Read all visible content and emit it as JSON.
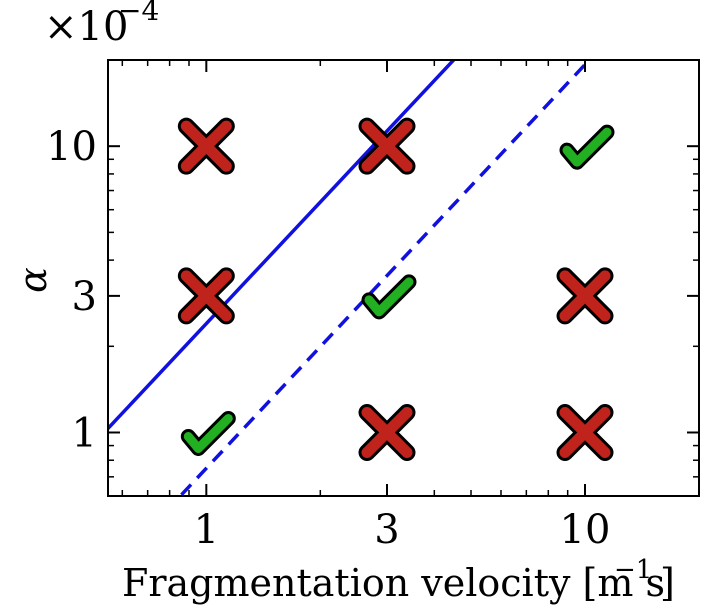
{
  "chart_data": {
    "type": "scatter",
    "title": "",
    "multiplier": {
      "base": "×10",
      "exponent": "−4"
    },
    "xlabel": {
      "text": "Fragmentation velocity [m s",
      "exponent": "−1",
      "close": "]"
    },
    "ylabel": "α",
    "xscale": "log",
    "yscale": "log",
    "xlim": [
      0.55,
      20
    ],
    "ylim": [
      0.6,
      20
    ],
    "xticks": [
      {
        "value": 1,
        "label": "1"
      },
      {
        "value": 3,
        "label": "3"
      },
      {
        "value": 10,
        "label": "10"
      }
    ],
    "yticks": [
      {
        "value": 1,
        "label": "1"
      },
      {
        "value": 3,
        "label": "3"
      },
      {
        "value": 10,
        "label": "10"
      }
    ],
    "points": [
      {
        "x": 1,
        "y": 10,
        "marker": "cross",
        "outcome": "fail"
      },
      {
        "x": 3,
        "y": 10,
        "marker": "cross",
        "outcome": "fail"
      },
      {
        "x": 10,
        "y": 10,
        "marker": "check",
        "outcome": "success"
      },
      {
        "x": 1,
        "y": 3,
        "marker": "cross",
        "outcome": "fail"
      },
      {
        "x": 3,
        "y": 3,
        "marker": "check",
        "outcome": "success"
      },
      {
        "x": 10,
        "y": 3,
        "marker": "cross",
        "outcome": "fail"
      },
      {
        "x": 1,
        "y": 1,
        "marker": "check",
        "outcome": "success"
      },
      {
        "x": 3,
        "y": 1,
        "marker": "cross",
        "outcome": "fail"
      },
      {
        "x": 10,
        "y": 1,
        "marker": "cross",
        "outcome": "fail"
      }
    ],
    "lines": [
      {
        "name": "solid-line",
        "style": "solid",
        "color": "#1010e0",
        "slope": 1.41,
        "intercept_y_at_x1": 2.4
      },
      {
        "name": "dashed-line",
        "style": "dashed",
        "color": "#1010e0",
        "slope": 1.41,
        "intercept_y_at_x1": 0.75
      }
    ],
    "colors": {
      "cross": "#c0231b",
      "check": "#22b022",
      "outline": "#000000"
    }
  }
}
